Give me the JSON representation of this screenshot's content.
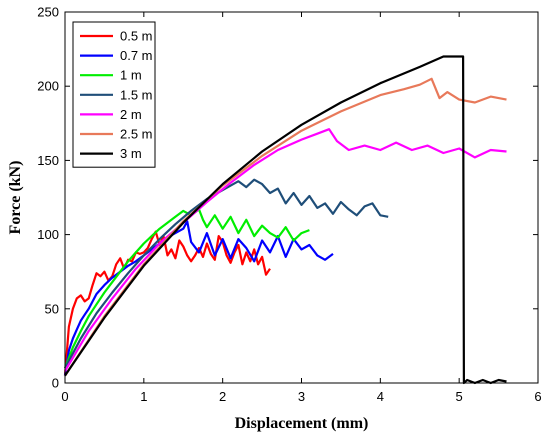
{
  "chart_data": {
    "type": "line",
    "title": "",
    "xlabel": "Displacement (mm)",
    "ylabel": "Force (kN)",
    "xlim": [
      0,
      6
    ],
    "ylim": [
      0,
      250
    ],
    "xticks": [
      0,
      1,
      2,
      3,
      4,
      5,
      6
    ],
    "yticks": [
      0,
      50,
      100,
      150,
      200,
      250
    ],
    "grid": false,
    "legend_position": "top-left",
    "series": [
      {
        "name": "0.5 m",
        "color": "#ff0000",
        "x": [
          0,
          0.05,
          0.1,
          0.15,
          0.2,
          0.25,
          0.3,
          0.35,
          0.4,
          0.45,
          0.5,
          0.55,
          0.6,
          0.65,
          0.7,
          0.75,
          0.8,
          0.85,
          0.9,
          0.95,
          1.0,
          1.05,
          1.1,
          1.15,
          1.2,
          1.25,
          1.3,
          1.35,
          1.4,
          1.45,
          1.5,
          1.55,
          1.6,
          1.65,
          1.7,
          1.75,
          1.8,
          1.85,
          1.9,
          1.95,
          2.0,
          2.05,
          2.1,
          2.15,
          2.2,
          2.25,
          2.3,
          2.35,
          2.4,
          2.45,
          2.5,
          2.55,
          2.6
        ],
        "y": [
          5,
          38,
          50,
          57,
          59,
          55,
          57,
          66,
          74,
          72,
          75,
          69,
          72,
          80,
          84,
          77,
          83,
          82,
          88,
          87,
          88,
          91,
          97,
          102,
          93,
          99,
          86,
          90,
          84,
          96,
          92,
          86,
          82,
          86,
          91,
          85,
          94,
          87,
          83,
          99,
          95,
          86,
          81,
          88,
          93,
          80,
          88,
          82,
          90,
          80,
          85,
          73,
          77
        ]
      },
      {
        "name": "0.7 m",
        "color": "#0000ff",
        "x": [
          0,
          0.05,
          0.1,
          0.15,
          0.2,
          0.25,
          0.3,
          0.35,
          0.4,
          0.45,
          0.5,
          0.6,
          0.7,
          0.8,
          0.9,
          1.0,
          1.1,
          1.2,
          1.3,
          1.4,
          1.5,
          1.55,
          1.6,
          1.7,
          1.8,
          1.9,
          2.0,
          2.1,
          2.2,
          2.3,
          2.4,
          2.5,
          2.6,
          2.7,
          2.8,
          2.9,
          3.0,
          3.1,
          3.2,
          3.3,
          3.4
        ],
        "y": [
          5,
          22,
          30,
          36,
          42,
          46,
          50,
          55,
          60,
          63,
          66,
          71,
          75,
          79,
          82,
          86,
          90,
          94,
          98,
          101,
          104,
          109,
          95,
          88,
          101,
          86,
          97,
          84,
          97,
          91,
          82,
          96,
          88,
          99,
          85,
          97,
          90,
          93,
          86,
          83,
          87
        ]
      },
      {
        "name": "1 m",
        "color": "#00ee00",
        "x": [
          0,
          0.1,
          0.2,
          0.3,
          0.4,
          0.5,
          0.6,
          0.7,
          0.8,
          0.9,
          1.0,
          1.1,
          1.2,
          1.3,
          1.4,
          1.5,
          1.6,
          1.7,
          1.75,
          1.8,
          1.9,
          2.0,
          2.1,
          2.2,
          2.3,
          2.4,
          2.5,
          2.6,
          2.7,
          2.8,
          2.9,
          3.0,
          3.1
        ],
        "y": [
          10,
          24,
          35,
          45,
          53,
          61,
          68,
          75,
          82,
          88,
          94,
          99,
          104,
          108,
          112,
          116,
          113,
          117,
          110,
          105,
          113,
          104,
          112,
          101,
          110,
          99,
          106,
          101,
          98,
          105,
          96,
          101,
          103
        ]
      },
      {
        "name": "1.5 m",
        "color": "#1f4e79",
        "x": [
          0,
          0.2,
          0.4,
          0.6,
          0.8,
          1.0,
          1.2,
          1.4,
          1.6,
          1.8,
          2.0,
          2.2,
          2.3,
          2.4,
          2.5,
          2.6,
          2.7,
          2.8,
          2.9,
          3.0,
          3.1,
          3.2,
          3.3,
          3.4,
          3.5,
          3.6,
          3.7,
          3.8,
          3.9,
          4.0,
          4.1
        ],
        "y": [
          10,
          30,
          47,
          61,
          74,
          86,
          97,
          107,
          116,
          124,
          130,
          136,
          132,
          137,
          134,
          128,
          131,
          121,
          128,
          120,
          126,
          118,
          121,
          114,
          122,
          117,
          113,
          119,
          121,
          113,
          112
        ]
      },
      {
        "name": "2 m",
        "color": "#ff00ff",
        "x": [
          0,
          0.3,
          0.6,
          0.9,
          1.2,
          1.5,
          1.8,
          2.1,
          2.4,
          2.7,
          3.0,
          3.2,
          3.35,
          3.45,
          3.6,
          3.8,
          4.0,
          4.2,
          4.4,
          4.6,
          4.8,
          5.0,
          5.2,
          5.4,
          5.6
        ],
        "y": [
          8,
          35,
          57,
          77,
          94,
          108,
          122,
          135,
          147,
          157,
          164,
          168,
          171,
          163,
          157,
          160,
          157,
          162,
          157,
          160,
          155,
          158,
          152,
          157,
          156
        ]
      },
      {
        "name": "2.5 m",
        "color": "#e8795a",
        "x": [
          0,
          0.5,
          1.0,
          1.5,
          2.0,
          2.5,
          3.0,
          3.5,
          4.0,
          4.3,
          4.5,
          4.65,
          4.75,
          4.85,
          5.0,
          5.2,
          5.4,
          5.6
        ],
        "y": [
          5,
          45,
          80,
          109,
          133,
          153,
          170,
          183,
          194,
          198,
          201,
          205,
          192,
          196,
          191,
          189,
          193,
          191
        ]
      },
      {
        "name": "3 m",
        "color": "#000000",
        "x": [
          0,
          0.5,
          1.0,
          1.5,
          2.0,
          2.5,
          3.0,
          3.5,
          4.0,
          4.5,
          4.8,
          5.0,
          5.05,
          5.06,
          5.1,
          5.2,
          5.3,
          5.4,
          5.5,
          5.6
        ],
        "y": [
          5,
          44,
          79,
          108,
          134,
          156,
          174,
          189,
          202,
          213,
          220,
          220,
          220,
          0,
          2,
          0,
          2,
          0,
          2,
          1
        ]
      }
    ]
  }
}
